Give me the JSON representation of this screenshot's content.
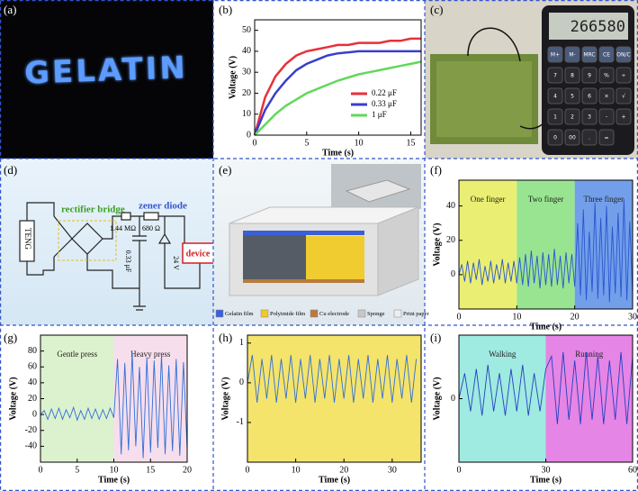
{
  "panel_labels": [
    "(a)",
    "(b)",
    "(c)",
    "(d)",
    "(e)",
    "(f)",
    "(g)",
    "(h)",
    "(i)"
  ],
  "photo_a": {
    "text": "GELATIN"
  },
  "photo_c": {
    "display": "266580",
    "keys": [
      "M+",
      "M-",
      "MRC",
      "CE",
      "ON/C",
      "7",
      "8",
      "9",
      "%",
      "÷",
      "4",
      "5",
      "6",
      "×",
      "√",
      "1",
      "2",
      "3",
      "-",
      "+",
      "0",
      "00",
      ".",
      "="
    ]
  },
  "circuit": {
    "teng": "TENG",
    "bridge": "rectifier bridge",
    "resistor1": "1.44 MΩ",
    "resistor2": "680 Ω",
    "zener": "zener diode",
    "capacitor": "0.33 μF",
    "zener_voltage": "24 V",
    "device": "device"
  },
  "structure": {
    "legend": [
      {
        "name": "Gelatin film",
        "color": "#3b5fd8"
      },
      {
        "name": "Polyimide film",
        "color": "#f2c824"
      },
      {
        "name": "Cu electrode",
        "color": "#b87a3c"
      },
      {
        "name": "Sponge",
        "color": "#c8c8c8"
      },
      {
        "name": "Print paper",
        "color": "#eeeeee"
      }
    ]
  },
  "chart_data": [
    {
      "type": "line",
      "xlabel": "Time (s)",
      "ylabel": "Voltage (V)",
      "x": [
        0,
        1,
        2,
        3,
        4,
        5,
        6,
        7,
        8,
        9,
        10,
        11,
        12,
        13,
        14,
        15,
        16
      ],
      "xlim": [
        0,
        16
      ],
      "xticks": [
        0,
        5,
        10,
        15
      ],
      "ylim": [
        0,
        55
      ],
      "yticks": [
        0,
        10,
        20,
        30,
        40,
        50
      ],
      "legend": "lower right",
      "series": [
        {
          "name": "0.22 μF",
          "color": "#e8303a",
          "values": [
            0,
            18,
            28,
            34,
            38,
            40,
            41,
            42,
            43,
            43,
            44,
            44,
            44,
            45,
            45,
            46,
            46
          ]
        },
        {
          "name": "0.33 μF",
          "color": "#3a3fc8",
          "values": [
            0,
            12,
            20,
            26,
            31,
            34,
            36,
            38,
            39,
            39.5,
            40,
            40,
            40,
            40,
            40,
            40,
            40
          ]
        },
        {
          "name": "1  μF",
          "color": "#62d85a",
          "values": [
            0,
            5,
            10,
            14,
            17,
            20,
            22,
            24,
            26,
            27.5,
            29,
            30,
            31,
            32,
            33,
            34,
            35
          ]
        }
      ]
    },
    {
      "type": "line",
      "xlabel": "Time (s)",
      "ylabel": "Voltage (V)",
      "xlim": [
        0,
        30
      ],
      "xticks": [
        0,
        10,
        20,
        30
      ],
      "ylim": [
        -20,
        55
      ],
      "yticks": [
        0,
        20,
        40
      ],
      "regions": [
        {
          "label": "One finger",
          "start": 0,
          "end": 10,
          "color": "#e6ec5c"
        },
        {
          "label": "Two finger",
          "start": 10,
          "end": 20,
          "color": "#86df7e"
        },
        {
          "label": "Three finger",
          "start": 20,
          "end": 30,
          "color": "#5a8ee6"
        }
      ],
      "color": "#2a55d0",
      "x": [
        0,
        0.5,
        1,
        1.5,
        2,
        2.5,
        3,
        3.5,
        4,
        4.5,
        5,
        5.5,
        6,
        6.5,
        7,
        7.5,
        8,
        8.5,
        9,
        9.5,
        10,
        10.5,
        11,
        11.5,
        12,
        12.5,
        13,
        13.5,
        14,
        14.5,
        15,
        15.5,
        16,
        16.5,
        17,
        17.5,
        18,
        18.5,
        19,
        19.5,
        20,
        20.5,
        21,
        21.5,
        22,
        22.5,
        23,
        23.5,
        24,
        24.5,
        25,
        25.5,
        26,
        26.5,
        27,
        27.5,
        28,
        28.5,
        29,
        29.5,
        30
      ],
      "values": [
        0,
        6,
        -4,
        8,
        -5,
        7,
        -3,
        9,
        -6,
        5,
        -4,
        8,
        -5,
        6,
        -3,
        9,
        -5,
        7,
        -4,
        8,
        -5,
        10,
        -6,
        12,
        -7,
        14,
        -5,
        11,
        -8,
        13,
        -6,
        12,
        -7,
        15,
        -6,
        11,
        -8,
        13,
        -5,
        12,
        -7,
        30,
        -12,
        38,
        -15,
        25,
        -10,
        42,
        -14,
        33,
        -12,
        40,
        -16,
        28,
        -11,
        36,
        -13,
        44,
        -15,
        31,
        -12
      ]
    },
    {
      "type": "line",
      "xlabel": "Time (s)",
      "ylabel": "Voltage (V)",
      "xlim": [
        0,
        20
      ],
      "xticks": [
        0,
        5,
        10,
        15,
        20
      ],
      "ylim": [
        -60,
        100
      ],
      "yticks": [
        -40,
        -20,
        0,
        20,
        40,
        60,
        80
      ],
      "regions": [
        {
          "label": "Gentle press",
          "start": 0,
          "end": 10,
          "color": "#d6f0c6"
        },
        {
          "label": "Heavy press",
          "start": 10,
          "end": 20,
          "color": "#f5d8ea"
        }
      ],
      "color": "#2f6fd8",
      "x": [
        0,
        0.5,
        1,
        1.5,
        2,
        2.5,
        3,
        3.5,
        4,
        4.5,
        5,
        5.5,
        6,
        6.5,
        7,
        7.5,
        8,
        8.5,
        9,
        9.5,
        10,
        10.5,
        11,
        11.5,
        12,
        12.5,
        13,
        13.5,
        14,
        14.5,
        15,
        15.5,
        16,
        16.5,
        17,
        17.5,
        18,
        18.5,
        19,
        19.5,
        20
      ],
      "values": [
        0,
        5,
        -6,
        7,
        -5,
        8,
        -6,
        6,
        -4,
        9,
        -7,
        5,
        -6,
        8,
        -5,
        7,
        -6,
        6,
        -5,
        8,
        -4,
        70,
        -50,
        65,
        -45,
        78,
        -40,
        60,
        -55,
        72,
        -48,
        68,
        -42,
        75,
        -50,
        62,
        -46,
        70,
        -52,
        66,
        -44
      ]
    },
    {
      "type": "line",
      "xlabel": "Time (s)",
      "ylabel": "Voltage (V)",
      "xlim": [
        0,
        36
      ],
      "xticks": [
        0,
        10,
        20,
        30
      ],
      "ylim": [
        -2,
        1.2
      ],
      "yticks": [
        -1,
        0,
        1
      ],
      "background": "#f4e46c",
      "color": "#2f6fd8",
      "x": [
        0,
        1,
        2,
        3,
        4,
        5,
        6,
        7,
        8,
        9,
        10,
        11,
        12,
        13,
        14,
        15,
        16,
        17,
        18,
        19,
        20,
        21,
        22,
        23,
        24,
        25,
        26,
        27,
        28,
        29,
        30,
        31,
        32,
        33,
        34,
        35
      ],
      "values": [
        0,
        0.7,
        -0.5,
        0.6,
        -0.4,
        0.7,
        -0.5,
        0.6,
        -0.4,
        0.7,
        -0.5,
        0.6,
        -0.4,
        0.7,
        -0.5,
        0.6,
        -0.4,
        0.7,
        -0.5,
        0.6,
        -0.4,
        0.7,
        -0.5,
        0.6,
        -0.4,
        0.7,
        -0.5,
        0.6,
        -0.4,
        0.7,
        -0.5,
        0.6,
        -0.4,
        0.7,
        -0.5,
        0.6
      ]
    },
    {
      "type": "line",
      "xlabel": "Time (s)",
      "ylabel": "Voltage (V)",
      "xlim": [
        0,
        60
      ],
      "xticks": [
        0,
        30,
        60
      ],
      "ylim": [
        -1.5,
        1.5
      ],
      "yticks": [
        0
      ],
      "regions": [
        {
          "label": "Walking",
          "start": 0,
          "end": 30,
          "color": "#8ee6dc"
        },
        {
          "label": "Running",
          "start": 30,
          "end": 60,
          "color": "#e070e0"
        }
      ],
      "color": "#2440c0",
      "x": [
        0,
        2,
        4,
        6,
        8,
        10,
        12,
        14,
        16,
        18,
        20,
        22,
        24,
        26,
        28,
        30,
        32,
        34,
        36,
        38,
        40,
        42,
        44,
        46,
        48,
        50,
        52,
        54,
        56,
        58,
        60
      ],
      "values": [
        0,
        0.6,
        -0.3,
        0.7,
        -0.4,
        0.8,
        -0.3,
        0.6,
        -0.4,
        0.7,
        -0.3,
        0.8,
        -0.4,
        0.6,
        -0.3,
        0.7,
        1.0,
        -0.6,
        1.1,
        -0.5,
        0.9,
        -0.6,
        1.1,
        -0.5,
        1.0,
        -0.6,
        0.9,
        -0.5,
        1.1,
        -0.6,
        1.0
      ]
    }
  ]
}
